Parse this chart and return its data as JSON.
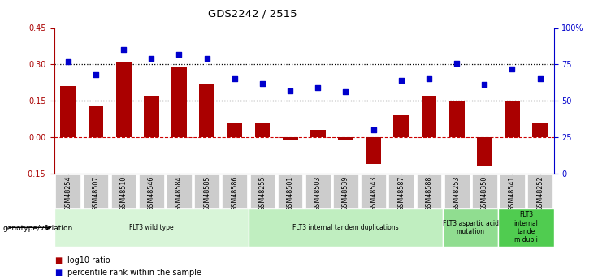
{
  "title": "GDS2242 / 2515",
  "samples": [
    "GSM48254",
    "GSM48507",
    "GSM48510",
    "GSM48546",
    "GSM48584",
    "GSM48585",
    "GSM48586",
    "GSM48255",
    "GSM48501",
    "GSM48503",
    "GSM48539",
    "GSM48543",
    "GSM48587",
    "GSM48588",
    "GSM48253",
    "GSM48350",
    "GSM48541",
    "GSM48252"
  ],
  "log10_ratio": [
    0.21,
    0.13,
    0.31,
    0.17,
    0.29,
    0.22,
    0.06,
    0.06,
    -0.01,
    0.03,
    -0.01,
    -0.11,
    0.09,
    0.17,
    0.15,
    -0.12,
    0.15,
    0.06
  ],
  "percentile_rank": [
    77,
    68,
    85,
    79,
    82,
    79,
    65,
    62,
    57,
    59,
    56,
    30,
    64,
    65,
    76,
    61,
    72,
    65
  ],
  "groups": [
    {
      "label": "FLT3 wild type",
      "start": 0,
      "end": 6,
      "color": "#d8f5d8"
    },
    {
      "label": "FLT3 internal tandem duplications",
      "start": 7,
      "end": 13,
      "color": "#c0eec0"
    },
    {
      "label": "FLT3 aspartic acid\nmutation",
      "start": 14,
      "end": 15,
      "color": "#90dd90"
    },
    {
      "label": "FLT3\ninternal\ntande\nm dupli",
      "start": 16,
      "end": 17,
      "color": "#50cc50"
    }
  ],
  "bar_color": "#aa0000",
  "dot_color": "#0000cc",
  "ylim_left": [
    -0.15,
    0.45
  ],
  "ylim_right": [
    0,
    100
  ],
  "yticks_left": [
    -0.15,
    0.0,
    0.15,
    0.3,
    0.45
  ],
  "yticks_right": [
    0,
    25,
    50,
    75,
    100
  ],
  "hlines": [
    0.15,
    0.3
  ],
  "zero_line_color": "#cc0000",
  "legend_items": [
    {
      "label": "log10 ratio",
      "color": "#aa0000"
    },
    {
      "label": "percentile rank within the sample",
      "color": "#0000cc"
    }
  ],
  "genotype_label": "genotype/variation",
  "tick_bg_color": "#cccccc",
  "bar_width": 0.55
}
